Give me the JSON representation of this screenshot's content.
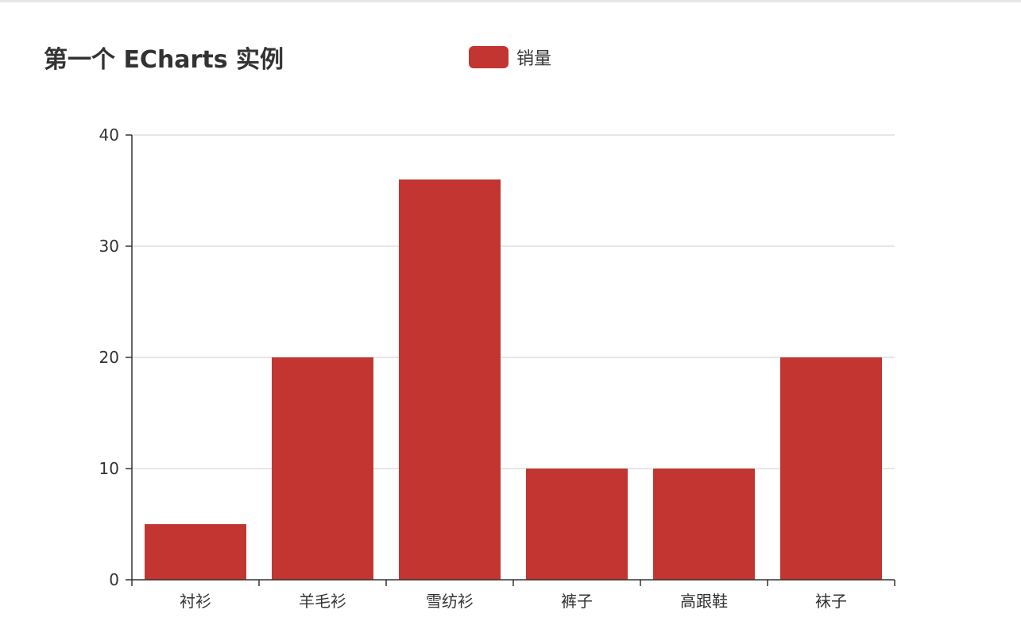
{
  "chart_data": {
    "type": "bar",
    "title": "第一个 ECharts 实例",
    "legend": [
      "销量"
    ],
    "legend_position": "top",
    "categories": [
      "衬衫",
      "羊毛衫",
      "雪纺衫",
      "裤子",
      "高跟鞋",
      "袜子"
    ],
    "series": [
      {
        "name": "销量",
        "values": [
          5,
          20,
          36,
          10,
          10,
          20
        ]
      }
    ],
    "yticks": [
      "0",
      "10",
      "20",
      "30",
      "40"
    ],
    "ylim": [
      0,
      40
    ],
    "grid": true,
    "colors": {
      "bar": "#c23531",
      "axis": "#333333",
      "grid": "#cccccc"
    }
  }
}
